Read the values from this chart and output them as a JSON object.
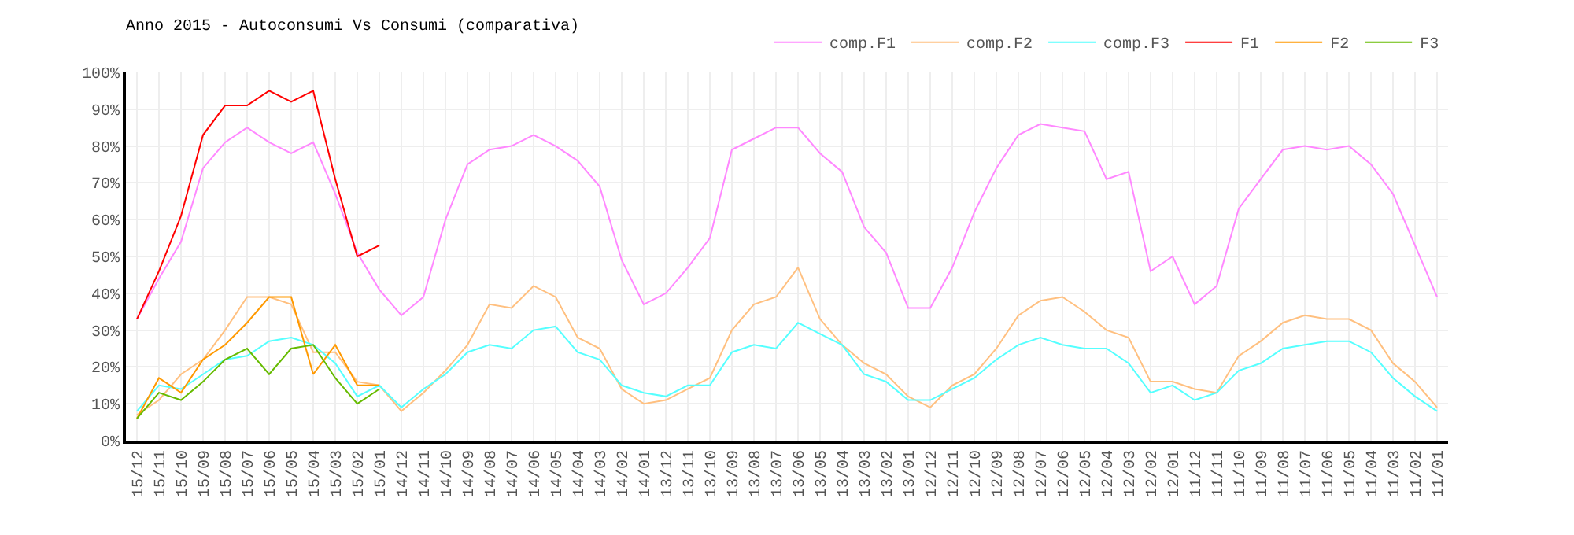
{
  "chart_data": {
    "type": "line",
    "title": "Anno 2015 - Autoconsumi Vs Consumi (comparativa)",
    "categories": [
      "15/12",
      "15/11",
      "15/10",
      "15/09",
      "15/08",
      "15/07",
      "15/06",
      "15/05",
      "15/04",
      "15/03",
      "15/02",
      "15/01",
      "14/12",
      "14/11",
      "14/10",
      "14/09",
      "14/08",
      "14/07",
      "14/06",
      "14/05",
      "14/04",
      "14/03",
      "14/02",
      "14/01",
      "13/12",
      "13/11",
      "13/10",
      "13/09",
      "13/08",
      "13/07",
      "13/06",
      "13/05",
      "13/04",
      "13/03",
      "13/02",
      "13/01",
      "12/12",
      "12/11",
      "12/10",
      "12/09",
      "12/08",
      "12/07",
      "12/06",
      "12/05",
      "12/04",
      "12/03",
      "12/02",
      "12/01",
      "11/12",
      "11/11",
      "11/10",
      "11/09",
      "11/08",
      "11/07",
      "11/06",
      "11/05",
      "11/04",
      "11/03",
      "11/02",
      "11/01"
    ],
    "series": [
      {
        "name": "comp.F1",
        "color": "#ff88ff",
        "values": [
          33,
          44,
          54,
          74,
          81,
          85,
          81,
          78,
          81,
          67,
          51,
          41,
          34,
          39,
          60,
          75,
          79,
          80,
          83,
          80,
          76,
          69,
          49,
          37,
          40,
          47,
          55,
          79,
          82,
          85,
          85,
          78,
          73,
          58,
          51,
          36,
          36,
          47,
          62,
          74,
          83,
          86,
          85,
          84,
          71,
          73,
          46,
          50,
          37,
          42,
          63,
          71,
          79,
          80,
          79,
          80,
          75,
          67,
          53,
          39
        ]
      },
      {
        "name": "comp.F2",
        "color": "#ffc080",
        "values": [
          7,
          11,
          18,
          22,
          30,
          39,
          39,
          37,
          24,
          24,
          16,
          15,
          8,
          13,
          19,
          26,
          37,
          36,
          42,
          39,
          28,
          25,
          14,
          10,
          11,
          14,
          17,
          30,
          37,
          39,
          47,
          33,
          26,
          21,
          18,
          12,
          9,
          15,
          18,
          25,
          34,
          38,
          39,
          35,
          30,
          28,
          16,
          16,
          14,
          13,
          23,
          27,
          32,
          34,
          33,
          33,
          30,
          21,
          16,
          9
        ]
      },
      {
        "name": "comp.F3",
        "color": "#55ffff",
        "values": [
          8,
          15,
          14,
          18,
          22,
          23,
          27,
          28,
          26,
          21,
          12,
          15,
          9,
          14,
          18,
          24,
          26,
          25,
          30,
          31,
          24,
          22,
          15,
          13,
          12,
          15,
          15,
          24,
          26,
          25,
          32,
          29,
          26,
          18,
          16,
          11,
          11,
          14,
          17,
          22,
          26,
          28,
          26,
          25,
          25,
          21,
          13,
          15,
          11,
          13,
          19,
          21,
          25,
          26,
          27,
          27,
          24,
          17,
          12,
          8
        ]
      },
      {
        "name": "F1",
        "color": "#ff0000",
        "values": [
          33,
          46,
          61,
          83,
          91,
          91,
          95,
          92,
          95,
          71,
          50,
          53,
          null,
          null,
          null,
          null,
          null,
          null,
          null,
          null,
          null,
          null,
          null,
          null,
          null,
          null,
          null,
          null,
          null,
          null,
          null,
          null,
          null,
          null,
          null,
          null,
          null,
          null,
          null,
          null,
          null,
          null,
          null,
          null,
          null,
          null,
          null,
          null,
          null,
          null,
          null,
          null,
          null,
          null,
          null,
          null,
          null,
          null,
          null,
          null
        ]
      },
      {
        "name": "F2",
        "color": "#ff9900",
        "values": [
          6,
          17,
          13,
          22,
          26,
          32,
          39,
          39,
          18,
          26,
          15,
          15,
          null,
          null,
          null,
          null,
          null,
          null,
          null,
          null,
          null,
          null,
          null,
          null,
          null,
          null,
          null,
          null,
          null,
          null,
          null,
          null,
          null,
          null,
          null,
          null,
          null,
          null,
          null,
          null,
          null,
          null,
          null,
          null,
          null,
          null,
          null,
          null,
          null,
          null,
          null,
          null,
          null,
          null,
          null,
          null,
          null,
          null,
          null,
          null
        ]
      },
      {
        "name": "F3",
        "color": "#66bb00",
        "values": [
          6,
          13,
          11,
          16,
          22,
          25,
          18,
          25,
          26,
          17,
          10,
          14,
          null,
          null,
          null,
          null,
          null,
          null,
          null,
          null,
          null,
          null,
          null,
          null,
          null,
          null,
          null,
          null,
          null,
          null,
          null,
          null,
          null,
          null,
          null,
          null,
          null,
          null,
          null,
          null,
          null,
          null,
          null,
          null,
          null,
          null,
          null,
          null,
          null,
          null,
          null,
          null,
          null,
          null,
          null,
          null,
          null,
          null,
          null,
          null
        ]
      }
    ],
    "ylim": [
      0,
      100
    ],
    "yticks": [
      {
        "value": 0,
        "label": "0%"
      },
      {
        "value": 10,
        "label": "10%"
      },
      {
        "value": 20,
        "label": "20%"
      },
      {
        "value": 30,
        "label": "30%"
      },
      {
        "value": 40,
        "label": "40%"
      },
      {
        "value": 50,
        "label": "50%"
      },
      {
        "value": 60,
        "label": "60%"
      },
      {
        "value": 70,
        "label": "70%"
      },
      {
        "value": 80,
        "label": "80%"
      },
      {
        "value": 90,
        "label": "90%"
      },
      {
        "value": 100,
        "label": "100%"
      }
    ],
    "grid": true,
    "legend": "top right",
    "marker": "none",
    "line_style": "solid"
  }
}
